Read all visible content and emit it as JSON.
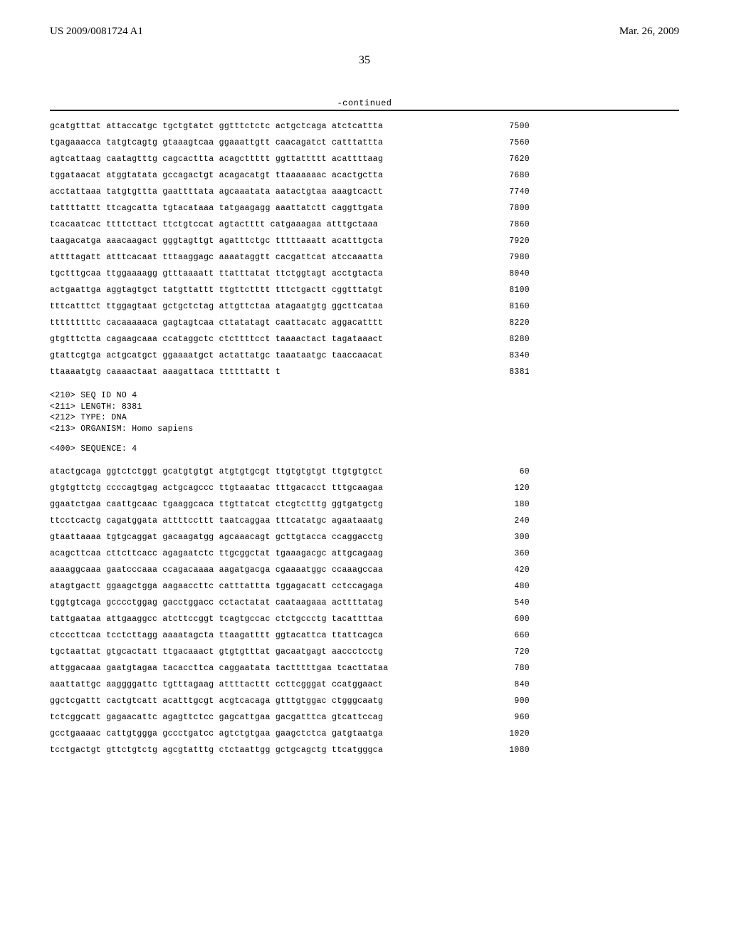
{
  "header": {
    "left": "US 2009/0081724 A1",
    "right": "Mar. 26, 2009"
  },
  "page_number": "35",
  "continued_label": "-continued",
  "sequence_block_1": {
    "rows": [
      {
        "seq": "gcatgtttat attaccatgc tgctgtatct ggtttctctc actgctcaga atctcattta",
        "pos": "7500"
      },
      {
        "seq": "tgagaaacca tatgtcagtg gtaaagtcaa ggaaattgtt caacagatct catttattta",
        "pos": "7560"
      },
      {
        "seq": "agtcattaag caatagtttg cagcacttta acagcttttt ggttattttt acattttaag",
        "pos": "7620"
      },
      {
        "seq": "tggataacat atggtatata gccagactgt acagacatgt ttaaaaaaac acactgctta",
        "pos": "7680"
      },
      {
        "seq": "acctattaaa tatgtgttta gaattttata agcaaatata aatactgtaa aaagtcactt",
        "pos": "7740"
      },
      {
        "seq": "tattttattt ttcagcatta tgtacataaa tatgaagagg aaattatctt caggttgata",
        "pos": "7800"
      },
      {
        "seq": "tcacaatcac ttttcttact ttctgtccat agtactttt catgaaagaa atttgctaaa",
        "pos": "7860"
      },
      {
        "seq": "taagacatga aaacaagact gggtagttgt agatttctgc tttttaaatt acatttgcta",
        "pos": "7920"
      },
      {
        "seq": "attttagatt atttcacaat tttaaggagc aaaataggtt cacgattcat atccaaatta",
        "pos": "7980"
      },
      {
        "seq": "tgctttgcaa ttggaaaagg gtttaaaatt ttatttatat ttctggtagt acctgtacta",
        "pos": "8040"
      },
      {
        "seq": "actgaattga aggtagtgct tatgttattt ttgttctttt tttctgactt cggtttatgt",
        "pos": "8100"
      },
      {
        "seq": "tttcatttct ttggagtaat gctgctctag attgttctaa atagaatgtg ggcttcataa",
        "pos": "8160"
      },
      {
        "seq": "tttttttttc cacaaaaaca gagtagtcaa cttatatagt caattacatc aggacatttt",
        "pos": "8220"
      },
      {
        "seq": "gtgtttctta cagaagcaaa ccataggctc ctcttttcct taaaactact tagataaact",
        "pos": "8280"
      },
      {
        "seq": "gtattcgtga actgcatgct ggaaaatgct actattatgc taaataatgc taaccaacat",
        "pos": "8340"
      },
      {
        "seq": "ttaaaatgtg caaaactaat aaagattaca ttttttattt t",
        "pos": "8381"
      }
    ]
  },
  "metadata": {
    "line1": "<210> SEQ ID NO 4",
    "line2": "<211> LENGTH: 8381",
    "line3": "<212> TYPE: DNA",
    "line4": "<213> ORGANISM: Homo sapiens"
  },
  "sequence_label": "<400> SEQUENCE: 4",
  "sequence_block_2": {
    "rows": [
      {
        "seq": "atactgcaga ggtctctggt gcatgtgtgt atgtgtgcgt ttgtgtgtgt ttgtgtgtct",
        "pos": "60"
      },
      {
        "seq": "gtgtgttctg ccccagtgag actgcagccc ttgtaaatac tttgacacct tttgcaagaa",
        "pos": "120"
      },
      {
        "seq": "ggaatctgaa caattgcaac tgaaggcaca ttgttatcat ctcgtctttg ggtgatgctg",
        "pos": "180"
      },
      {
        "seq": "ttcctcactg cagatggata attttccttt taatcaggaa tttcatatgc agaataaatg",
        "pos": "240"
      },
      {
        "seq": "gtaattaaaa tgtgcaggat gacaagatgg agcaaacagt gcttgtacca ccaggacctg",
        "pos": "300"
      },
      {
        "seq": "acagcttcaa cttcttcacc agagaatctc ttgcggctat tgaaagacgc attgcagaag",
        "pos": "360"
      },
      {
        "seq": "aaaaggcaaa gaatcccaaa ccagacaaaa aagatgacga cgaaaatggc ccaaagccaa",
        "pos": "420"
      },
      {
        "seq": "atagtgactt ggaagctgga aagaaccttc catttattta tggagacatt cctccagaga",
        "pos": "480"
      },
      {
        "seq": "tggtgtcaga gcccctggag gacctggacc cctactatat caataagaaa acttttatag",
        "pos": "540"
      },
      {
        "seq": "tattgaataa attgaaggcc atcttccggt tcagtgccac ctctgccctg tacattttaa",
        "pos": "600"
      },
      {
        "seq": "ctcccttcaa tcctcttagg aaaatagcta ttaagatttt ggtacattca ttattcagca",
        "pos": "660"
      },
      {
        "seq": "tgctaattat gtgcactatt ttgacaaact gtgtgtttat gacaatgagt aaccctcctg",
        "pos": "720"
      },
      {
        "seq": "attggacaaa gaatgtagaa tacaccttca caggaatata tactttttgaa tcacttataa",
        "pos": "780"
      },
      {
        "seq": "aaattattgc aaggggattc tgtttagaag attttacttt ccttcgggat ccatggaact",
        "pos": "840"
      },
      {
        "seq": "ggctcgattt cactgtcatt acatttgcgt acgtcacaga gtttgtggac ctgggcaatg",
        "pos": "900"
      },
      {
        "seq": "tctcggcatt gagaacattc agagttctcc gagcattgaa gacgatttca gtcattccag",
        "pos": "960"
      },
      {
        "seq": "gcctgaaaac cattgtggga gccctgatcc agtctgtgaa gaagctctca gatgtaatga",
        "pos": "1020"
      },
      {
        "seq": "tcctgactgt gttctgtctg agcgtatttg ctctaattgg gctgcagctg ttcatgggca",
        "pos": "1080"
      }
    ]
  },
  "colors": {
    "background": "#ffffff",
    "text": "#000000",
    "line": "#000000"
  },
  "font": {
    "body": "Times New Roman",
    "mono": "Courier New",
    "header_size": 15,
    "page_num_size": 16,
    "mono_size": 11.5
  }
}
